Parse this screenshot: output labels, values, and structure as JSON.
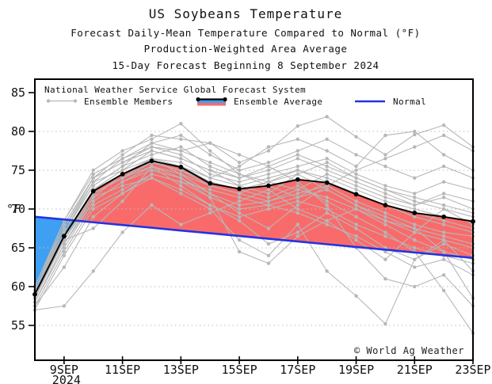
{
  "title": {
    "line1": "US Soybeans Temperature",
    "line2": "Forecast Daily-Mean Temperature Compared to Normal (°F)",
    "line3": "Production-Weighted Area Average",
    "line4": "15-Day Forecast Beginning 8 September 2024"
  },
  "legend": {
    "header": "National Weather Service Global Forecast System",
    "members_label": "Ensemble Members",
    "average_label": "Ensemble Average",
    "normal_label": "Normal"
  },
  "axis": {
    "y_unit": "°F",
    "y_ticks": [
      55,
      60,
      65,
      70,
      75,
      80,
      85
    ],
    "grid_values": [
      55,
      60,
      65,
      70,
      75,
      80
    ],
    "x_ticks": [
      {
        "day": 9,
        "label": "9SEP",
        "sublabel": "2024"
      },
      {
        "day": 11,
        "label": "11SEP"
      },
      {
        "day": 13,
        "label": "13SEP"
      },
      {
        "day": 15,
        "label": "15SEP"
      },
      {
        "day": 17,
        "label": "17SEP"
      },
      {
        "day": 19,
        "label": "19SEP"
      },
      {
        "day": 21,
        "label": "21SEP"
      },
      {
        "day": 23,
        "label": "23SEP"
      }
    ]
  },
  "copyright": "© World Ag Weather",
  "colors": {
    "average_line": "#000000",
    "normal_line": "#2433e2",
    "above_normal_fill": "#f96b6b",
    "below_normal_fill": "#3f9ff2",
    "member_gray": "#b7b7b7",
    "grid": "#bdbdbd",
    "axis": "#000000"
  },
  "chart_data": {
    "type": "line",
    "x_days": [
      8,
      9,
      10,
      11,
      12,
      13,
      14,
      15,
      16,
      17,
      18,
      19,
      20,
      21,
      22,
      23
    ],
    "x_unit": "date (September 2024)",
    "ylabel": "°F",
    "ylim": [
      50.5,
      86.7
    ],
    "grid": "horizontal-dotted",
    "legend_position": "top-left-inside",
    "series": [
      {
        "name": "Ensemble Average",
        "values": [
          59.0,
          66.5,
          72.3,
          74.5,
          76.2,
          75.4,
          73.3,
          72.6,
          73.0,
          73.8,
          73.4,
          71.9,
          70.5,
          69.5,
          69.0,
          68.4
        ]
      },
      {
        "name": "Normal",
        "values": [
          69.0,
          68.65,
          68.29,
          67.94,
          67.59,
          67.23,
          66.88,
          66.52,
          66.17,
          65.82,
          65.46,
          65.11,
          64.76,
          64.4,
          64.05,
          63.7
        ]
      }
    ],
    "fills": {
      "above_normal": "red area between Ensemble Average and Normal where average > normal",
      "below_normal": "blue area between Ensemble Average and Normal where average < normal"
    },
    "ensemble_members": [
      [
        57.0,
        57.5,
        62.0,
        67.0,
        70.5,
        68.0,
        69.5,
        71.0,
        72.5,
        70.0,
        68.5,
        66.0,
        63.5,
        67.0,
        70.0,
        68.0
      ],
      [
        58.5,
        66.0,
        71.5,
        73.0,
        74.0,
        72.0,
        70.0,
        66.0,
        64.0,
        68.0,
        62.0,
        58.8,
        55.2,
        63.5,
        66.0,
        62.0
      ],
      [
        59.5,
        68.0,
        74.0,
        77.0,
        79.5,
        79.0,
        78.5,
        76.0,
        77.5,
        80.7,
        81.9,
        79.3,
        77.0,
        79.6,
        80.8,
        78.0
      ],
      [
        59.0,
        67.0,
        73.0,
        75.5,
        77.0,
        78.0,
        75.5,
        74.0,
        75.0,
        76.5,
        75.0,
        73.5,
        72.0,
        70.5,
        71.5,
        70.0
      ],
      [
        58.0,
        65.0,
        71.0,
        73.5,
        75.0,
        74.0,
        72.0,
        70.5,
        71.0,
        72.0,
        73.0,
        71.0,
        69.5,
        68.0,
        67.0,
        66.5
      ],
      [
        60.0,
        68.5,
        74.5,
        76.5,
        78.0,
        77.0,
        74.5,
        73.5,
        74.5,
        75.5,
        76.5,
        74.5,
        73.0,
        72.0,
        73.5,
        72.5
      ],
      [
        58.5,
        66.5,
        72.5,
        74.5,
        76.0,
        75.0,
        73.0,
        72.0,
        73.5,
        75.0,
        74.0,
        72.5,
        71.0,
        70.0,
        69.0,
        68.5
      ],
      [
        57.5,
        64.5,
        70.5,
        72.5,
        74.5,
        73.5,
        71.5,
        70.0,
        70.5,
        71.5,
        72.5,
        70.5,
        68.5,
        67.5,
        66.5,
        65.5
      ],
      [
        59.0,
        66.0,
        72.0,
        74.0,
        76.5,
        76.0,
        74.0,
        75.5,
        78.0,
        79.0,
        77.5,
        75.5,
        79.5,
        80.0,
        77.0,
        75.0
      ],
      [
        58.5,
        66.5,
        72.0,
        74.0,
        75.5,
        73.0,
        70.5,
        68.5,
        65.5,
        67.0,
        69.5,
        67.5,
        65.0,
        63.5,
        65.5,
        64.0
      ],
      [
        59.5,
        67.5,
        73.5,
        75.0,
        77.5,
        76.5,
        75.0,
        73.0,
        72.0,
        74.5,
        76.0,
        74.0,
        72.5,
        71.5,
        70.5,
        69.5
      ],
      [
        58.0,
        65.5,
        71.5,
        74.5,
        76.0,
        75.5,
        73.5,
        72.5,
        71.5,
        73.0,
        71.0,
        69.0,
        67.0,
        64.5,
        59.5,
        54.0
      ],
      [
        59.0,
        67.0,
        73.0,
        75.5,
        78.5,
        79.5,
        77.0,
        75.0,
        76.0,
        77.5,
        79.0,
        77.0,
        75.5,
        74.0,
        75.5,
        74.0
      ],
      [
        60.0,
        68.5,
        75.0,
        77.5,
        79.0,
        81.0,
        77.5,
        74.5,
        73.0,
        71.5,
        73.5,
        72.0,
        70.5,
        69.0,
        68.0,
        67.0
      ],
      [
        57.0,
        64.0,
        70.0,
        72.0,
        74.0,
        72.5,
        70.5,
        69.0,
        70.0,
        71.0,
        70.0,
        68.0,
        66.5,
        65.0,
        64.0,
        63.0
      ],
      [
        58.5,
        66.0,
        72.5,
        75.0,
        76.5,
        74.5,
        72.0,
        69.5,
        67.5,
        70.5,
        73.0,
        75.0,
        76.5,
        78.0,
        79.5,
        77.5
      ],
      [
        59.5,
        67.5,
        74.0,
        76.0,
        78.0,
        77.5,
        76.0,
        74.5,
        73.5,
        72.5,
        74.5,
        73.0,
        71.5,
        70.5,
        72.0,
        71.0
      ],
      [
        57.5,
        62.5,
        69.0,
        72.0,
        74.5,
        73.5,
        72.5,
        71.5,
        70.5,
        69.5,
        68.0,
        66.5,
        64.5,
        62.5,
        63.5,
        61.5
      ],
      [
        59.0,
        66.5,
        72.5,
        74.5,
        76.5,
        75.5,
        74.0,
        73.0,
        74.0,
        75.0,
        73.5,
        72.0,
        70.5,
        69.5,
        68.5,
        67.5
      ],
      [
        58.5,
        66.0,
        67.5,
        71.0,
        75.5,
        74.0,
        71.5,
        64.5,
        63.0,
        66.5,
        68.5,
        70.0,
        68.0,
        66.0,
        64.5,
        63.5
      ],
      [
        60.0,
        68.0,
        74.0,
        76.0,
        77.5,
        76.5,
        75.0,
        74.0,
        75.5,
        77.0,
        75.5,
        74.0,
        72.5,
        71.0,
        70.0,
        69.0
      ],
      [
        59.5,
        67.0,
        73.5,
        76.5,
        78.5,
        77.5,
        78.5,
        77.0,
        75.5,
        73.5,
        70.5,
        65.0,
        61.0,
        60.0,
        61.5,
        57.5
      ],
      [
        58.0,
        65.5,
        71.0,
        73.5,
        75.5,
        74.5,
        73.0,
        72.0,
        71.0,
        72.5,
        71.5,
        70.0,
        68.5,
        67.0,
        66.0,
        65.0
      ],
      [
        59.0,
        66.0,
        72.0,
        74.0,
        76.0,
        75.0,
        73.5,
        72.5,
        73.5,
        74.5,
        72.5,
        70.5,
        69.0,
        67.5,
        64.5,
        58.5
      ]
    ]
  }
}
